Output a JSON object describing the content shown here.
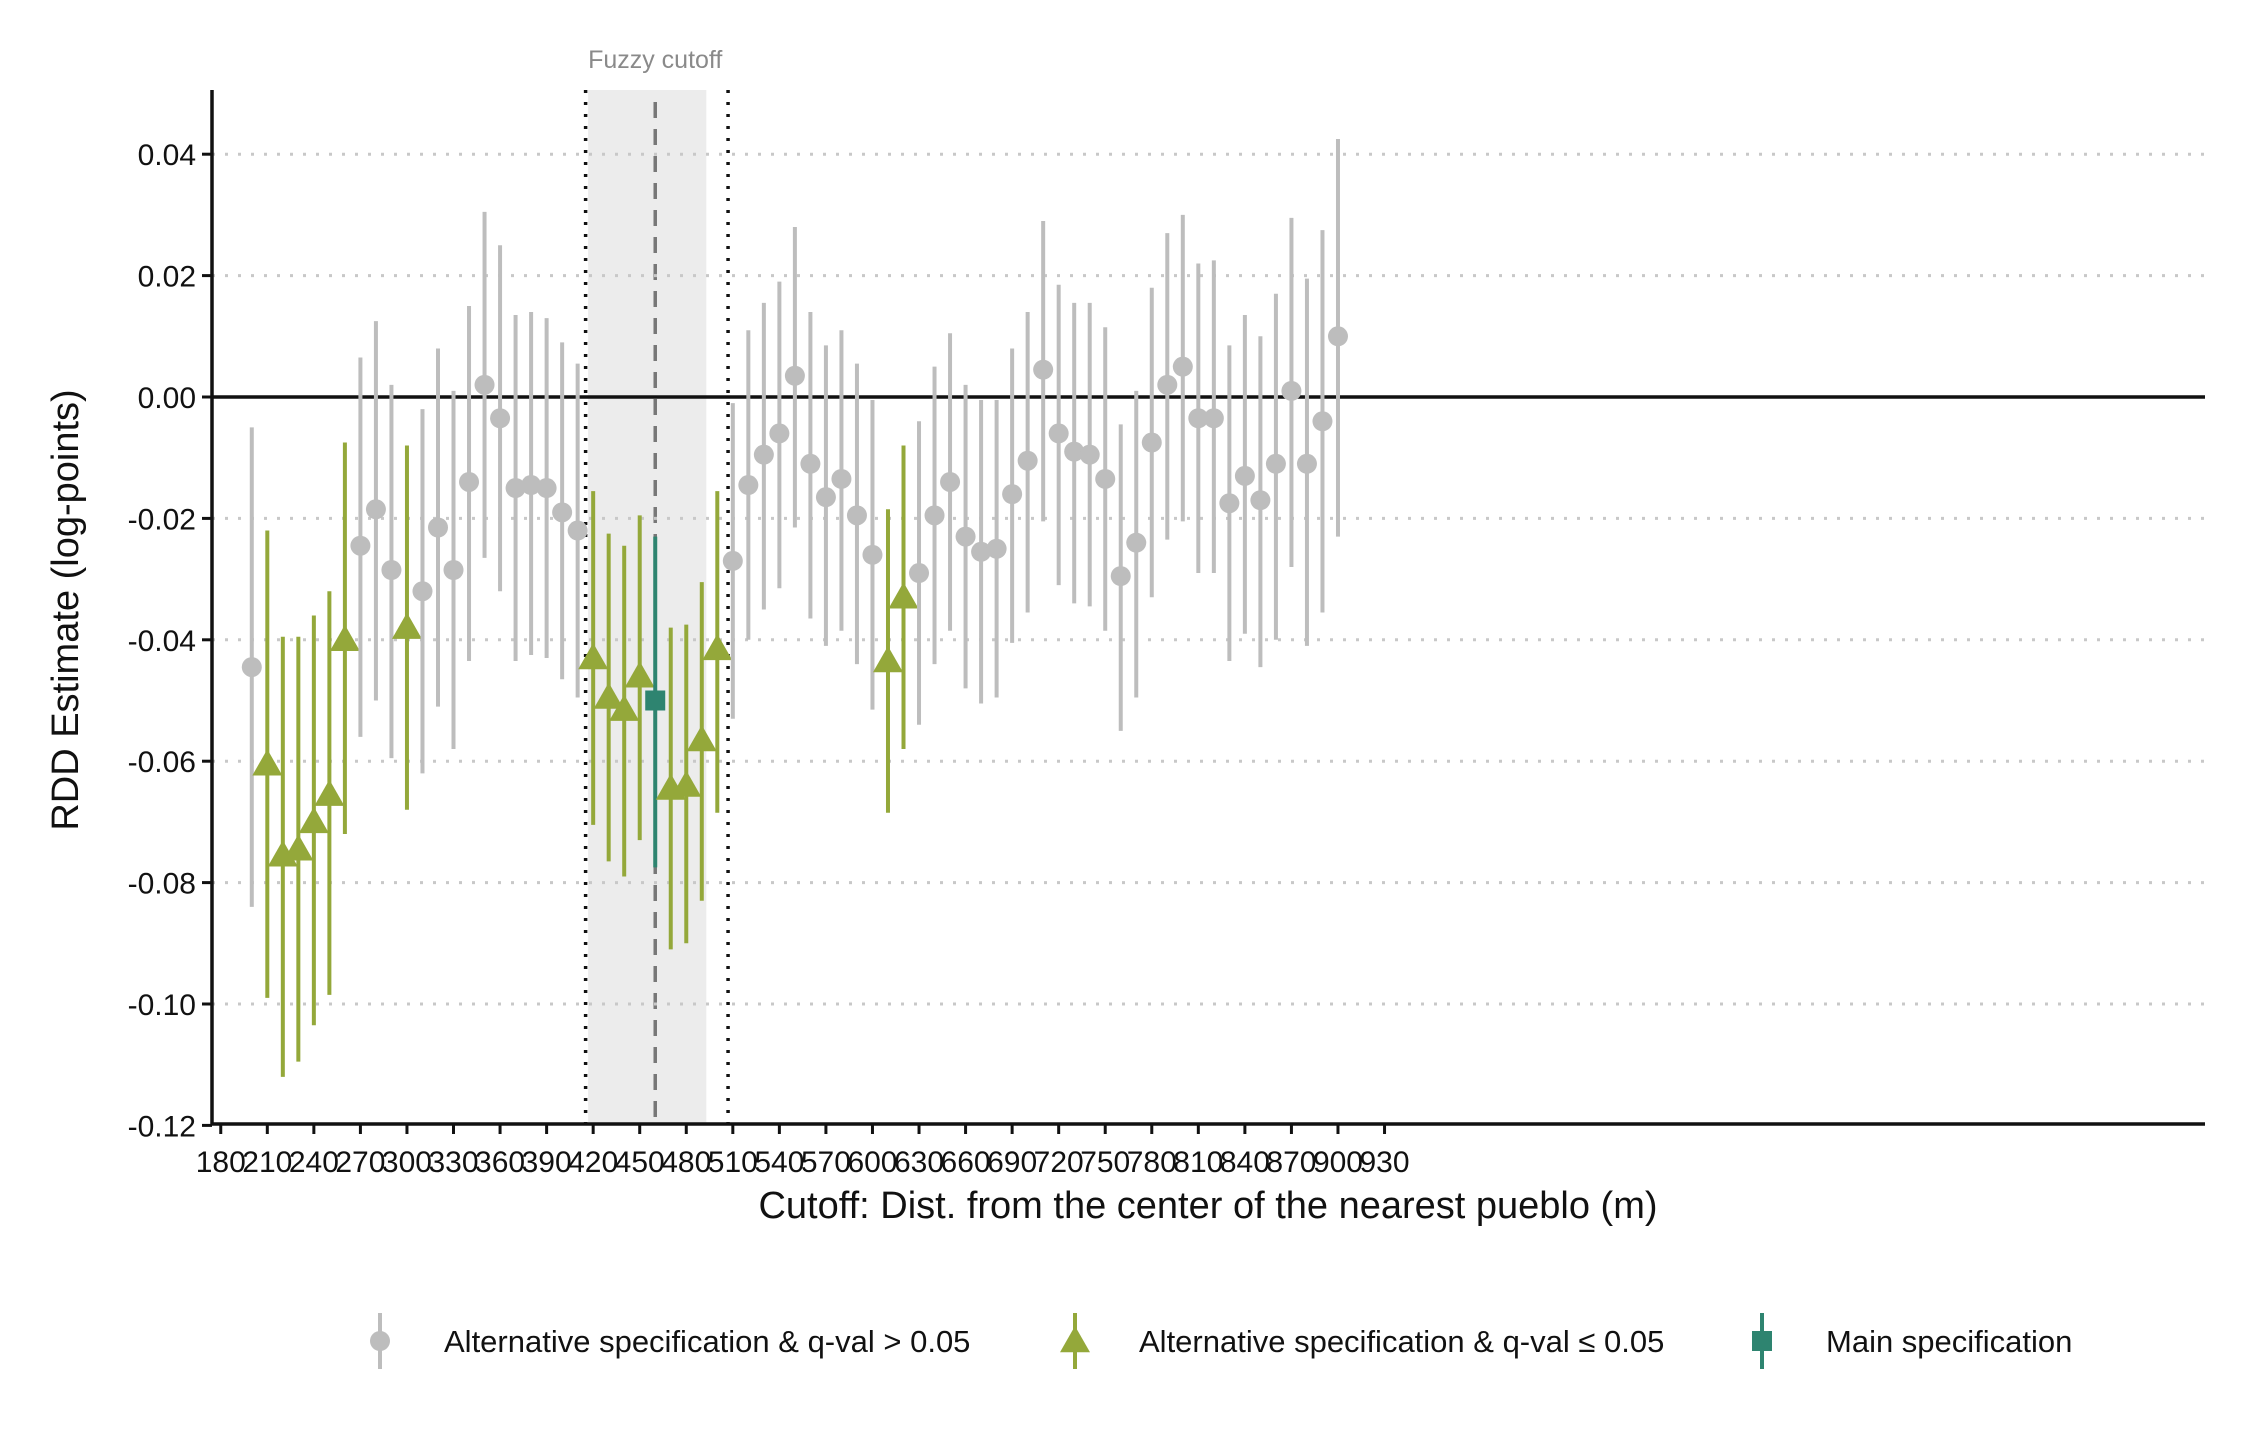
{
  "chart_data": {
    "type": "scatter",
    "plot_kind": "point estimates with confidence intervals",
    "title": "",
    "xlabel": "Cutoff: Dist. from the center of the nearest pueblo (m)",
    "ylabel": "RDD Estimate (log-points)",
    "xlim": [
      175,
      935
    ],
    "ylim": [
      -0.12,
      0.05
    ],
    "x_ticks": [
      "180",
      "210",
      "240",
      "270",
      "300",
      "330",
      "360",
      "390",
      "420",
      "450",
      "480",
      "510",
      "540",
      "570",
      "600",
      "630",
      "660",
      "690",
      "720",
      "750",
      "780",
      "810",
      "840",
      "870",
      "900",
      "930"
    ],
    "y_ticks": [
      "0.04",
      "0.02",
      "0.00",
      "-0.02",
      "-0.04",
      "-0.06",
      "-0.08",
      "-0.10",
      "-0.12"
    ],
    "grid": "horizontal dotted",
    "reference_line_y": 0,
    "fuzzy_cutoff": {
      "label": "Fuzzy cutoff",
      "band": [
        400,
        500
      ],
      "inner_markers": [
        419,
        505
      ],
      "center": 460
    },
    "legend_position": "bottom",
    "legend": [
      {
        "key": "alt_ns",
        "label": "Alternative specification & q-val > 0.05",
        "color": "#bdbdbd",
        "shape": "circle"
      },
      {
        "key": "alt_sig",
        "label": "Alternative specification & q-val ≤ 0.05",
        "color": "#94a83a",
        "shape": "triangle"
      },
      {
        "key": "main",
        "label": "Main specification",
        "color": "#2e8470",
        "shape": "square"
      }
    ],
    "colors": {
      "alt_ns": "#bdbdbd",
      "alt_sig": "#94a83a",
      "main": "#2e8470",
      "band": "#ececec",
      "cutoff": "#777777"
    },
    "points": [
      {
        "x": 200,
        "est": -0.0445,
        "lo": -0.084,
        "hi": -0.005,
        "group": "alt_ns"
      },
      {
        "x": 210,
        "est": -0.0605,
        "lo": -0.099,
        "hi": -0.022,
        "group": "alt_sig"
      },
      {
        "x": 220,
        "est": -0.0755,
        "lo": -0.112,
        "hi": -0.0395,
        "group": "alt_sig"
      },
      {
        "x": 230,
        "est": -0.0745,
        "lo": -0.1095,
        "hi": -0.0395,
        "group": "alt_sig"
      },
      {
        "x": 240,
        "est": -0.07,
        "lo": -0.1035,
        "hi": -0.036,
        "group": "alt_sig"
      },
      {
        "x": 250,
        "est": -0.0655,
        "lo": -0.0985,
        "hi": -0.032,
        "group": "alt_sig"
      },
      {
        "x": 260,
        "est": -0.04,
        "lo": -0.072,
        "hi": -0.0075,
        "group": "alt_sig"
      },
      {
        "x": 270,
        "est": -0.0245,
        "lo": -0.056,
        "hi": 0.0065,
        "group": "alt_ns"
      },
      {
        "x": 280,
        "est": -0.0185,
        "lo": -0.05,
        "hi": 0.0125,
        "group": "alt_ns"
      },
      {
        "x": 290,
        "est": -0.0285,
        "lo": -0.0595,
        "hi": 0.002,
        "group": "alt_ns"
      },
      {
        "x": 300,
        "est": -0.038,
        "lo": -0.068,
        "hi": -0.008,
        "group": "alt_sig"
      },
      {
        "x": 310,
        "est": -0.032,
        "lo": -0.062,
        "hi": -0.002,
        "group": "alt_ns"
      },
      {
        "x": 320,
        "est": -0.0215,
        "lo": -0.051,
        "hi": 0.008,
        "group": "alt_ns"
      },
      {
        "x": 330,
        "est": -0.0285,
        "lo": -0.058,
        "hi": 0.001,
        "group": "alt_ns"
      },
      {
        "x": 340,
        "est": -0.014,
        "lo": -0.0435,
        "hi": 0.015,
        "group": "alt_ns"
      },
      {
        "x": 350,
        "est": 0.002,
        "lo": -0.0265,
        "hi": 0.0305,
        "group": "alt_ns"
      },
      {
        "x": 360,
        "est": -0.0035,
        "lo": -0.032,
        "hi": 0.025,
        "group": "alt_ns"
      },
      {
        "x": 370,
        "est": -0.015,
        "lo": -0.0435,
        "hi": 0.0135,
        "group": "alt_ns"
      },
      {
        "x": 380,
        "est": -0.0145,
        "lo": -0.0425,
        "hi": 0.014,
        "group": "alt_ns"
      },
      {
        "x": 390,
        "est": -0.015,
        "lo": -0.043,
        "hi": 0.013,
        "group": "alt_ns"
      },
      {
        "x": 400,
        "est": -0.019,
        "lo": -0.0465,
        "hi": 0.009,
        "group": "alt_ns"
      },
      {
        "x": 410,
        "est": -0.022,
        "lo": -0.0495,
        "hi": 0.0055,
        "group": "alt_ns"
      },
      {
        "x": 420,
        "est": -0.043,
        "lo": -0.0705,
        "hi": -0.0155,
        "group": "alt_sig"
      },
      {
        "x": 430,
        "est": -0.0495,
        "lo": -0.0765,
        "hi": -0.0225,
        "group": "alt_sig"
      },
      {
        "x": 440,
        "est": -0.0515,
        "lo": -0.079,
        "hi": -0.0245,
        "group": "alt_sig"
      },
      {
        "x": 450,
        "est": -0.046,
        "lo": -0.073,
        "hi": -0.0195,
        "group": "alt_sig"
      },
      {
        "x": 460,
        "est": -0.05,
        "lo": -0.0775,
        "hi": -0.023,
        "group": "main"
      },
      {
        "x": 470,
        "est": -0.0645,
        "lo": -0.091,
        "hi": -0.038,
        "group": "alt_sig"
      },
      {
        "x": 480,
        "est": -0.064,
        "lo": -0.09,
        "hi": -0.0375,
        "group": "alt_sig"
      },
      {
        "x": 490,
        "est": -0.0565,
        "lo": -0.083,
        "hi": -0.0305,
        "group": "alt_sig"
      },
      {
        "x": 500,
        "est": -0.0415,
        "lo": -0.0685,
        "hi": -0.0155,
        "group": "alt_sig"
      },
      {
        "x": 510,
        "est": -0.027,
        "lo": -0.053,
        "hi": -0.001,
        "group": "alt_ns"
      },
      {
        "x": 520,
        "est": -0.0145,
        "lo": -0.04,
        "hi": 0.011,
        "group": "alt_ns"
      },
      {
        "x": 530,
        "est": -0.0095,
        "lo": -0.035,
        "hi": 0.0155,
        "group": "alt_ns"
      },
      {
        "x": 540,
        "est": -0.006,
        "lo": -0.0315,
        "hi": 0.019,
        "group": "alt_ns"
      },
      {
        "x": 550,
        "est": 0.0035,
        "lo": -0.0215,
        "hi": 0.028,
        "group": "alt_ns"
      },
      {
        "x": 560,
        "est": -0.011,
        "lo": -0.0365,
        "hi": 0.014,
        "group": "alt_ns"
      },
      {
        "x": 570,
        "est": -0.0165,
        "lo": -0.041,
        "hi": 0.0085,
        "group": "alt_ns"
      },
      {
        "x": 580,
        "est": -0.0135,
        "lo": -0.0385,
        "hi": 0.011,
        "group": "alt_ns"
      },
      {
        "x": 590,
        "est": -0.0195,
        "lo": -0.044,
        "hi": 0.0055,
        "group": "alt_ns"
      },
      {
        "x": 600,
        "est": -0.026,
        "lo": -0.0515,
        "hi": -0.0005,
        "group": "alt_ns"
      },
      {
        "x": 610,
        "est": -0.0435,
        "lo": -0.0685,
        "hi": -0.0185,
        "group": "alt_sig"
      },
      {
        "x": 620,
        "est": -0.033,
        "lo": -0.058,
        "hi": -0.008,
        "group": "alt_sig"
      },
      {
        "x": 630,
        "est": -0.029,
        "lo": -0.054,
        "hi": -0.004,
        "group": "alt_ns"
      },
      {
        "x": 640,
        "est": -0.0195,
        "lo": -0.044,
        "hi": 0.005,
        "group": "alt_ns"
      },
      {
        "x": 650,
        "est": -0.014,
        "lo": -0.0385,
        "hi": 0.0105,
        "group": "alt_ns"
      },
      {
        "x": 660,
        "est": -0.023,
        "lo": -0.048,
        "hi": 0.002,
        "group": "alt_ns"
      },
      {
        "x": 670,
        "est": -0.0255,
        "lo": -0.0505,
        "hi": -0.0005,
        "group": "alt_ns"
      },
      {
        "x": 680,
        "est": -0.025,
        "lo": -0.0495,
        "hi": -0.0005,
        "group": "alt_ns"
      },
      {
        "x": 690,
        "est": -0.016,
        "lo": -0.0405,
        "hi": 0.008,
        "group": "alt_ns"
      },
      {
        "x": 700,
        "est": -0.0105,
        "lo": -0.0355,
        "hi": 0.014,
        "group": "alt_ns"
      },
      {
        "x": 710,
        "est": 0.0045,
        "lo": -0.0205,
        "hi": 0.029,
        "group": "alt_ns"
      },
      {
        "x": 720,
        "est": -0.006,
        "lo": -0.031,
        "hi": 0.0185,
        "group": "alt_ns"
      },
      {
        "x": 730,
        "est": -0.009,
        "lo": -0.034,
        "hi": 0.0155,
        "group": "alt_ns"
      },
      {
        "x": 740,
        "est": -0.0095,
        "lo": -0.0345,
        "hi": 0.0155,
        "group": "alt_ns"
      },
      {
        "x": 750,
        "est": -0.0135,
        "lo": -0.0385,
        "hi": 0.0115,
        "group": "alt_ns"
      },
      {
        "x": 760,
        "est": -0.0295,
        "lo": -0.055,
        "hi": -0.0045,
        "group": "alt_ns"
      },
      {
        "x": 770,
        "est": -0.024,
        "lo": -0.0495,
        "hi": 0.001,
        "group": "alt_ns"
      },
      {
        "x": 780,
        "est": -0.0075,
        "lo": -0.033,
        "hi": 0.018,
        "group": "alt_ns"
      },
      {
        "x": 790,
        "est": 0.002,
        "lo": -0.0235,
        "hi": 0.027,
        "group": "alt_ns"
      },
      {
        "x": 800,
        "est": 0.005,
        "lo": -0.0205,
        "hi": 0.03,
        "group": "alt_ns"
      },
      {
        "x": 810,
        "est": -0.0035,
        "lo": -0.029,
        "hi": 0.022,
        "group": "alt_ns"
      },
      {
        "x": 820,
        "est": -0.0035,
        "lo": -0.029,
        "hi": 0.0225,
        "group": "alt_ns"
      },
      {
        "x": 830,
        "est": -0.0175,
        "lo": -0.0435,
        "hi": 0.0085,
        "group": "alt_ns"
      },
      {
        "x": 840,
        "est": -0.013,
        "lo": -0.039,
        "hi": 0.0135,
        "group": "alt_ns"
      },
      {
        "x": 850,
        "est": -0.017,
        "lo": -0.0445,
        "hi": 0.01,
        "group": "alt_ns"
      },
      {
        "x": 860,
        "est": -0.011,
        "lo": -0.04,
        "hi": 0.017,
        "group": "alt_ns"
      },
      {
        "x": 870,
        "est": 0.001,
        "lo": -0.028,
        "hi": 0.0295,
        "group": "alt_ns"
      },
      {
        "x": 880,
        "est": -0.011,
        "lo": -0.041,
        "hi": 0.0195,
        "group": "alt_ns"
      },
      {
        "x": 890,
        "est": -0.004,
        "lo": -0.0355,
        "hi": 0.0275,
        "group": "alt_ns"
      },
      {
        "x": 900,
        "est": 0.01,
        "lo": -0.023,
        "hi": 0.0425,
        "group": "alt_ns"
      }
    ]
  }
}
